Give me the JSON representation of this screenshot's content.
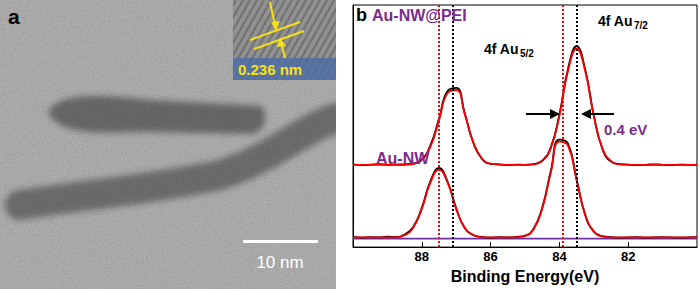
{
  "image_panel": {
    "label": "a",
    "lattice_spacing": "0.236 nm",
    "scale_bar": "10 nm"
  },
  "chart_data": {
    "type": "line",
    "x_label": "Binding Energy(eV)",
    "x": [
      90,
      89.75,
      89.5,
      89.25,
      89,
      88.75,
      88.5,
      88.25,
      88,
      87.75,
      87.5,
      87.25,
      87,
      86.75,
      86.5,
      86.25,
      86,
      85.75,
      85.5,
      85.25,
      85,
      84.75,
      84.5,
      84.25,
      84,
      83.75,
      83.5,
      83.25,
      83,
      82.75,
      82.5,
      82.25,
      82,
      81.75,
      81.5,
      81.25,
      81,
      80.75,
      80.5,
      80.25,
      80
    ],
    "xlim": [
      90,
      80
    ],
    "xticks": [
      88,
      86,
      84,
      82
    ],
    "ylim": [
      0,
      10
    ],
    "tick_labels": "x",
    "grid": false,
    "series": [
      {
        "color": "#7030a0",
        "values": [
          0.35,
          0.35,
          0.35,
          0.35,
          0.35,
          0.35,
          0.35,
          0.35,
          0.35,
          0.35,
          0.35,
          0.35,
          0.35,
          0.35,
          0.35,
          0.35,
          0.35,
          0.35,
          0.35,
          0.35,
          0.35,
          0.35,
          0.35,
          0.35,
          0.35,
          0.35,
          0.35,
          0.35,
          0.35,
          0.35,
          0.35,
          0.35,
          0.35,
          0.35,
          0.35,
          0.35,
          0.35,
          0.35,
          0.35,
          0.35,
          0.35
        ]
      },
      {
        "color": "#000000",
        "values": [
          0.42,
          0.39,
          0.41,
          0.4,
          0.43,
          0.42,
          0.52,
          0.83,
          1.62,
          2.72,
          3.27,
          2.7,
          1.6,
          0.78,
          0.5,
          0.42,
          0.39,
          0.41,
          0.4,
          0.42,
          0.47,
          0.76,
          1.62,
          3.14,
          4.44,
          4.27,
          2.8,
          1.33,
          0.64,
          0.45,
          0.41,
          0.39,
          0.4,
          0.41,
          0.39,
          0.4,
          0.41,
          0.4,
          0.39,
          0.4,
          0.41
        ]
      },
      {
        "color": "#ff0000",
        "values": [
          0.4,
          0.4,
          0.4,
          0.4,
          0.4,
          0.41,
          0.49,
          0.8,
          1.58,
          2.66,
          3.2,
          2.66,
          1.58,
          0.8,
          0.49,
          0.41,
          0.4,
          0.4,
          0.4,
          0.41,
          0.46,
          0.74,
          1.58,
          3.08,
          4.36,
          4.19,
          2.76,
          1.35,
          0.65,
          0.44,
          0.4,
          0.4,
          0.4,
          0.4,
          0.4,
          0.4,
          0.4,
          0.4,
          0.4,
          0.4,
          0.4
        ],
        "peaks": [
          87.5,
          83.9
        ]
      },
      {
        "color": "#000000",
        "values": [
          3.42,
          3.39,
          3.41,
          3.43,
          3.4,
          3.41,
          3.42,
          3.45,
          3.62,
          4.2,
          5.3,
          6.45,
          6.58,
          5.52,
          4.3,
          3.64,
          3.44,
          3.42,
          3.39,
          3.41,
          3.4,
          3.43,
          3.57,
          4.12,
          5.48,
          7.36,
          8.3,
          7.33,
          5.44,
          4.06,
          3.53,
          3.43,
          3.41,
          3.39,
          3.4,
          3.42,
          3.4,
          3.39,
          3.41,
          3.4,
          3.41
        ],
        "peaks": [
          87.1,
          83.5
        ]
      },
      {
        "color": "#ff0000",
        "values": [
          3.4,
          3.4,
          3.4,
          3.4,
          3.4,
          3.4,
          3.4,
          3.43,
          3.59,
          4.14,
          5.24,
          6.36,
          6.49,
          5.49,
          4.32,
          3.66,
          3.45,
          3.41,
          3.4,
          3.4,
          3.4,
          3.42,
          3.55,
          4.09,
          5.42,
          7.27,
          8.2,
          7.27,
          5.42,
          4.09,
          3.55,
          3.42,
          3.4,
          3.4,
          3.4,
          3.4,
          3.4,
          3.4,
          3.4,
          3.4,
          3.4
        ]
      }
    ],
    "annotations": [
      {
        "text": "b",
        "color": "#000000"
      },
      {
        "text": "Au-NW@PEI",
        "color": "#7b2c8c"
      },
      {
        "text": "Au-NW",
        "color": "#7b2c8c"
      },
      {
        "text": "4f Au5/2",
        "color": "#000000"
      },
      {
        "text": "4f Au7/2",
        "color": "#000000"
      },
      {
        "text": "0.4 eV",
        "color": "#7b2c8c"
      }
    ]
  }
}
